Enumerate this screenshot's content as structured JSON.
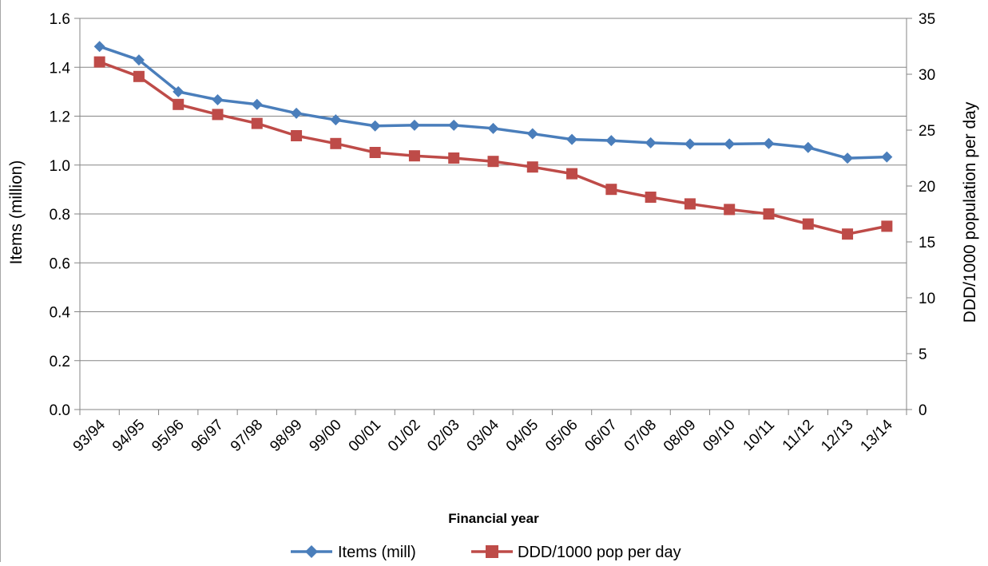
{
  "chart_data": {
    "type": "line",
    "xlabel": "Financial year",
    "ylabel": "Items (million)",
    "y2label": "DDD/1000 population per day",
    "categories": [
      "93/94",
      "94/95",
      "95/96",
      "96/97",
      "97/98",
      "98/99",
      "99/00",
      "00/01",
      "01/02",
      "02/03",
      "03/04",
      "04/05",
      "05/06",
      "06/07",
      "07/08",
      "08/09",
      "09/10",
      "10/11",
      "11/12",
      "12/13",
      "13/14"
    ],
    "ylim": [
      0,
      1.6
    ],
    "y2lim": [
      0,
      35
    ],
    "yticks": [
      "0.0",
      "0.2",
      "0.4",
      "0.6",
      "0.8",
      "1.0",
      "1.2",
      "1.4",
      "1.6"
    ],
    "y2ticks": [
      "0",
      "5",
      "10",
      "15",
      "20",
      "25",
      "30",
      "35"
    ],
    "grid": true,
    "legend_position": "bottom",
    "series": [
      {
        "name": "Items (mill)",
        "axis": "left",
        "color": "#4a7ebb",
        "marker": "diamond",
        "values": [
          1.485,
          1.43,
          1.3,
          1.267,
          1.248,
          1.212,
          1.185,
          1.16,
          1.163,
          1.163,
          1.15,
          1.128,
          1.105,
          1.1,
          1.091,
          1.086,
          1.086,
          1.088,
          1.072,
          1.028,
          1.033
        ]
      },
      {
        "name": "DDD/1000 pop per day",
        "axis": "right",
        "color": "#be4b48",
        "marker": "square",
        "values": [
          31.1,
          29.8,
          27.3,
          26.4,
          25.6,
          24.5,
          23.8,
          23.0,
          22.7,
          22.5,
          22.2,
          21.7,
          21.1,
          19.7,
          19.0,
          18.4,
          17.9,
          17.5,
          16.6,
          15.7,
          16.4
        ]
      }
    ]
  }
}
